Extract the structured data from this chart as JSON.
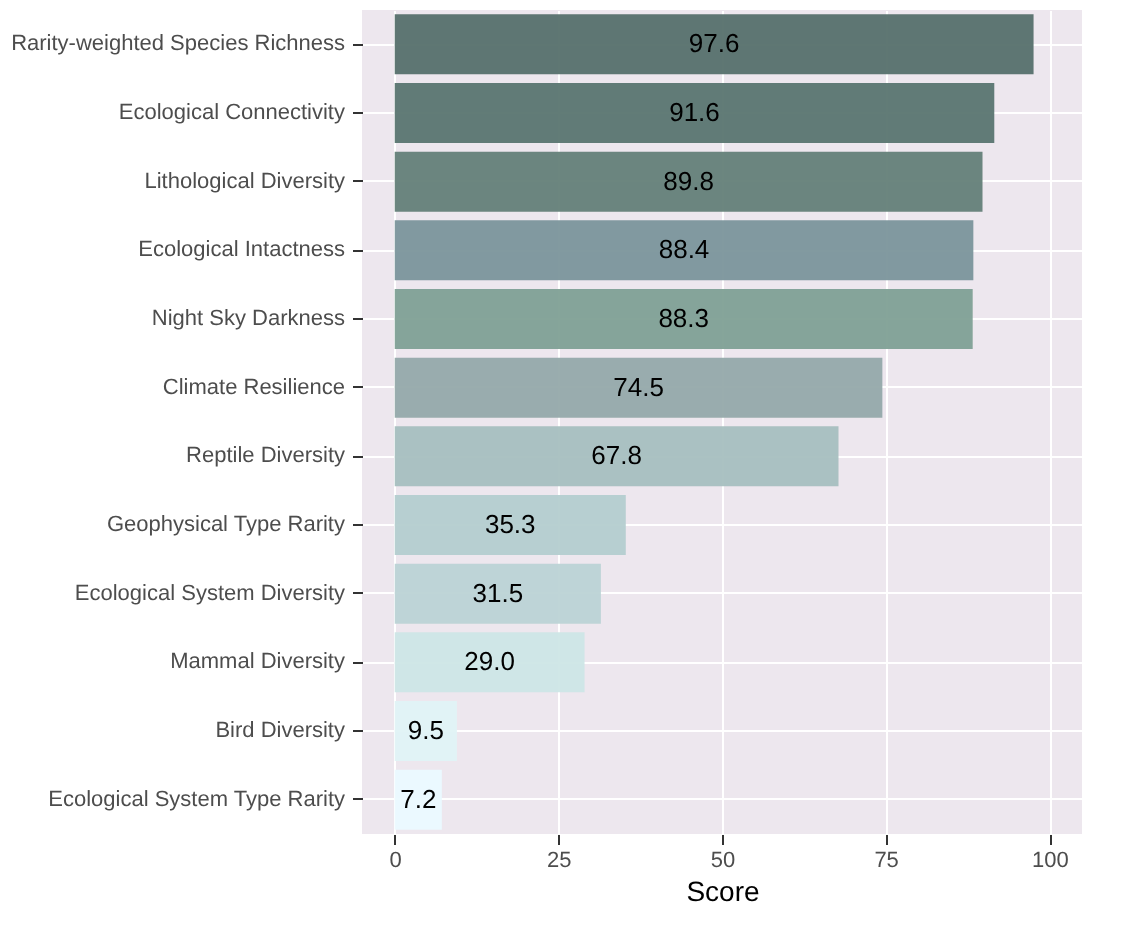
{
  "chart_data": {
    "type": "bar",
    "orientation": "horizontal",
    "xlabel": "Score",
    "categories": [
      "Rarity-weighted Species Richness",
      "Ecological Connectivity",
      "Lithological Diversity",
      "Ecological Intactness",
      "Night Sky Darkness",
      "Climate Resilience",
      "Reptile Diversity",
      "Geophysical Type Rarity",
      "Ecological System Diversity",
      "Mammal Diversity",
      "Bird Diversity",
      "Ecological System Type Rarity"
    ],
    "values": [
      97.6,
      91.6,
      89.8,
      88.4,
      88.3,
      74.5,
      67.8,
      35.3,
      31.5,
      29.0,
      9.5,
      7.2
    ],
    "value_labels": [
      "97.6",
      "91.6",
      "89.8",
      "88.4",
      "88.3",
      "74.5",
      "67.8",
      "35.3",
      "31.5",
      "29.0",
      "9.5",
      "7.2"
    ],
    "colors": [
      "#56706b",
      "#5a7570",
      "#647f78",
      "#7b959b",
      "#7fa095",
      "#95a9aa",
      "#a7bfbf",
      "#b4cdcf",
      "#bcd3d5",
      "#cde6e6",
      "#e0f3f5",
      "#ebfaff"
    ],
    "xlim": [
      -5,
      105
    ],
    "xticks": [
      0,
      25,
      50,
      75,
      100
    ],
    "grid": true
  }
}
